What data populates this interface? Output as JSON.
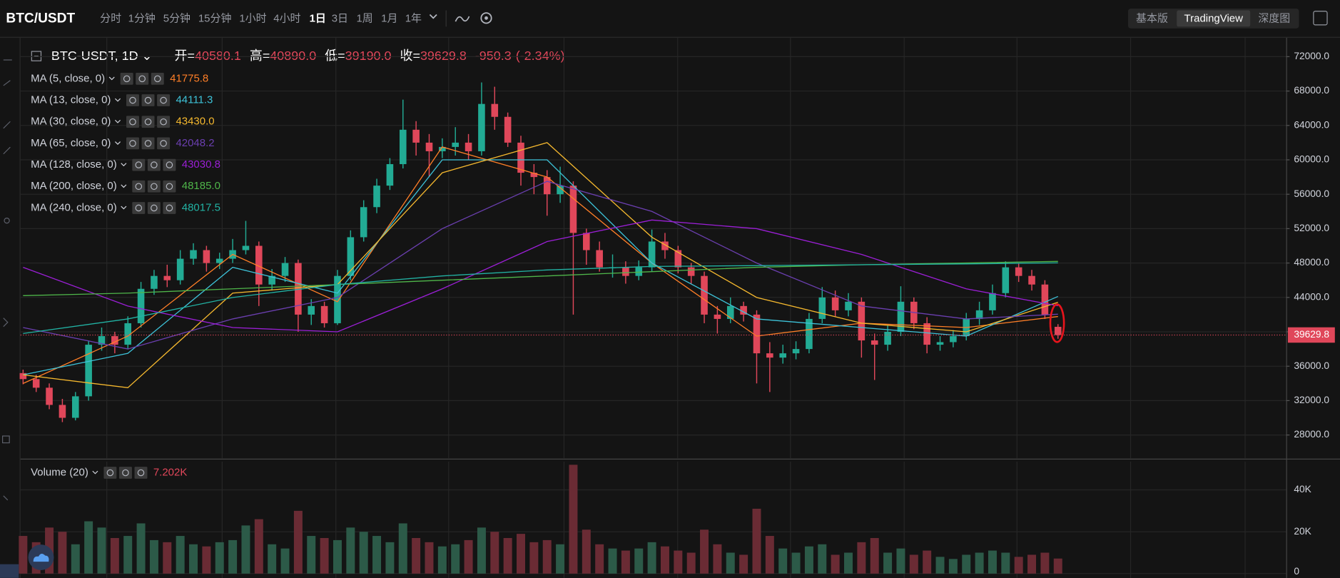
{
  "header": {
    "symbol": "BTC/USDT",
    "intervals": [
      "分时",
      "1分钟",
      "5分钟",
      "15分钟",
      "1小时",
      "4小时",
      "1日",
      "3日",
      "1周",
      "1月",
      "1年"
    ],
    "views": [
      "基本版",
      "TradingView",
      "深度图"
    ]
  },
  "chart_data": {
    "type": "candlestick",
    "title": "BTC-USDT, 1D",
    "legend": {
      "open_label": "开=",
      "open": "40580.1",
      "high_label": "高=",
      "high": "40890.0",
      "low_label": "低=",
      "low": "39190.0",
      "close_label": "收=",
      "close": "39629.8",
      "change": "-950.3",
      "change_pct": "(-2.34%)"
    },
    "up_color": "#22ab94",
    "down_color": "#e0475a",
    "grid": true,
    "ylim": [
      25300,
      74200
    ],
    "yticks": [
      {
        "value": 28000,
        "label": "28000.0"
      },
      {
        "value": 32000,
        "label": "32000.0"
      },
      {
        "value": 36000,
        "label": "36000.0"
      },
      {
        "value": 40000,
        "label": "40000.0"
      },
      {
        "value": 44000,
        "label": "44000.0"
      },
      {
        "value": 48000,
        "label": "48000.0"
      },
      {
        "value": 52000,
        "label": "52000.0"
      },
      {
        "value": 56000,
        "label": "56000.0"
      },
      {
        "value": 60000,
        "label": "60000.0"
      },
      {
        "value": 64000,
        "label": "64000.0"
      },
      {
        "value": 68000,
        "label": "68000.0"
      },
      {
        "value": 72000,
        "label": "72000.0"
      }
    ],
    "candles": [
      [
        35200,
        35600,
        33900,
        34500
      ],
      [
        34500,
        35000,
        33000,
        33500
      ],
      [
        33500,
        34000,
        31000,
        31500
      ],
      [
        31500,
        32200,
        29500,
        30000
      ],
      [
        30000,
        33000,
        29700,
        32500
      ],
      [
        32500,
        39000,
        32000,
        38500
      ],
      [
        38500,
        40500,
        37800,
        39500
      ],
      [
        39500,
        40000,
        37500,
        38500
      ],
      [
        38500,
        41800,
        38000,
        41000
      ],
      [
        41000,
        45800,
        40500,
        45000
      ],
      [
        45000,
        47200,
        44300,
        46500
      ],
      [
        46500,
        47800,
        45200,
        46000
      ],
      [
        46000,
        49500,
        45500,
        48500
      ],
      [
        48500,
        50300,
        47800,
        49500
      ],
      [
        49500,
        50000,
        47000,
        48000
      ],
      [
        48000,
        49200,
        47300,
        48500
      ],
      [
        48500,
        50800,
        48000,
        49500
      ],
      [
        49500,
        52900,
        49000,
        50000
      ],
      [
        50000,
        50500,
        43000,
        45500
      ],
      [
        45500,
        47300,
        44800,
        46500
      ],
      [
        46500,
        48700,
        45800,
        48000
      ],
      [
        48000,
        48400,
        40000,
        42000
      ],
      [
        42000,
        43800,
        40800,
        43000
      ],
      [
        43000,
        43500,
        40500,
        41000
      ],
      [
        41000,
        47200,
        40800,
        46500
      ],
      [
        46500,
        51800,
        46000,
        51000
      ],
      [
        51000,
        55300,
        50500,
        54500
      ],
      [
        54500,
        57800,
        53800,
        57000
      ],
      [
        57000,
        60200,
        56500,
        59500
      ],
      [
        59500,
        67000,
        59000,
        63500
      ],
      [
        63500,
        64500,
        60500,
        62000
      ],
      [
        62000,
        63000,
        58000,
        61000
      ],
      [
        61000,
        62500,
        60200,
        61500
      ],
      [
        61500,
        63800,
        60500,
        62000
      ],
      [
        62000,
        63000,
        60000,
        61000
      ],
      [
        61000,
        69000,
        60500,
        66500
      ],
      [
        66500,
        68500,
        63500,
        65000
      ],
      [
        65000,
        65500,
        61500,
        62000
      ],
      [
        62000,
        62800,
        57000,
        58500
      ],
      [
        58500,
        59500,
        56000,
        58000
      ],
      [
        58000,
        58800,
        53500,
        56000
      ],
      [
        56000,
        59200,
        55000,
        57000
      ],
      [
        57000,
        57500,
        42000,
        51500
      ],
      [
        51500,
        52000,
        47800,
        49500
      ],
      [
        49500,
        50500,
        47000,
        47500
      ],
      [
        47500,
        49000,
        46300,
        47500
      ],
      [
        47500,
        48200,
        45600,
        46500
      ],
      [
        46500,
        48300,
        46000,
        47500
      ],
      [
        47500,
        51900,
        47000,
        50500
      ],
      [
        50500,
        51500,
        48500,
        49500
      ],
      [
        49500,
        50000,
        46800,
        47500
      ],
      [
        47500,
        48000,
        45600,
        46500
      ],
      [
        46500,
        47000,
        41000,
        42000
      ],
      [
        42000,
        43000,
        39800,
        41500
      ],
      [
        41500,
        44000,
        41000,
        43000
      ],
      [
        43000,
        43500,
        41200,
        42000
      ],
      [
        42000,
        42500,
        34000,
        37500
      ],
      [
        37500,
        38800,
        33000,
        37000
      ],
      [
        37000,
        38500,
        36300,
        37500
      ],
      [
        37500,
        38900,
        36800,
        38000
      ],
      [
        38000,
        42200,
        37500,
        41500
      ],
      [
        41500,
        45200,
        41000,
        44000
      ],
      [
        44000,
        44800,
        41800,
        42500
      ],
      [
        42500,
        44500,
        41800,
        43500
      ],
      [
        43500,
        44000,
        37000,
        39000
      ],
      [
        39000,
        39800,
        34400,
        38500
      ],
      [
        38500,
        40800,
        37800,
        40000
      ],
      [
        40000,
        45300,
        39500,
        43500
      ],
      [
        43500,
        44000,
        40300,
        41000
      ],
      [
        41000,
        41700,
        37500,
        38500
      ],
      [
        38500,
        39500,
        37800,
        38800
      ],
      [
        38800,
        40200,
        38200,
        39500
      ],
      [
        39500,
        42200,
        39000,
        41500
      ],
      [
        41500,
        43500,
        40800,
        42500
      ],
      [
        42500,
        45500,
        42000,
        44500
      ],
      [
        44500,
        48200,
        44000,
        47500
      ],
      [
        47500,
        48000,
        45800,
        46500
      ],
      [
        46500,
        47200,
        44800,
        45500
      ],
      [
        45500,
        46000,
        41500,
        42000
      ],
      [
        40580.1,
        40890.0,
        39190.0,
        39629.8
      ]
    ],
    "series": [
      {
        "name": "MA (5, close, 0)",
        "color": "#ff7f27",
        "value_label": "41775.8",
        "x": [
          0,
          8,
          16,
          24,
          32,
          40,
          48,
          56,
          64,
          72,
          79
        ],
        "values": [
          34000,
          39500,
          49000,
          43500,
          61500,
          58000,
          48000,
          39500,
          41000,
          40500,
          41775.8
        ]
      },
      {
        "name": "MA (13, close, 0)",
        "color": "#3dc2d8",
        "value_label": "44111.3",
        "x": [
          0,
          8,
          16,
          24,
          32,
          40,
          48,
          56,
          64,
          72,
          79
        ],
        "values": [
          35000,
          37500,
          47500,
          44500,
          60000,
          60000,
          48000,
          41500,
          40500,
          39500,
          44111.3
        ]
      },
      {
        "name": "MA (30, close, 0)",
        "color": "#f5b82e",
        "value_label": "43430.0",
        "x": [
          0,
          8,
          16,
          24,
          32,
          40,
          48,
          56,
          64,
          72,
          79
        ],
        "values": [
          35000,
          33500,
          44500,
          45500,
          58500,
          62000,
          51000,
          44000,
          41000,
          40000,
          43430.0
        ]
      },
      {
        "name": "MA (65, close, 0)",
        "color": "#6b3fb0",
        "value_label": "42048.2",
        "x": [
          0,
          8,
          16,
          24,
          32,
          40,
          48,
          56,
          64,
          72,
          79
        ],
        "values": [
          40500,
          38000,
          41500,
          44000,
          52000,
          57500,
          54000,
          48000,
          43000,
          41500,
          42048.2
        ]
      },
      {
        "name": "MA (128, close, 0)",
        "color": "#9b1fd6",
        "value_label": "43030.8",
        "x": [
          0,
          8,
          16,
          24,
          32,
          40,
          48,
          56,
          64,
          72,
          79
        ],
        "values": [
          47500,
          43000,
          40500,
          40000,
          45000,
          50500,
          53000,
          52000,
          49000,
          45000,
          43030.8
        ]
      },
      {
        "name": "MA (200, close, 0)",
        "color": "#4fb64a",
        "value_label": "48185.0",
        "x": [
          0,
          8,
          16,
          24,
          32,
          40,
          48,
          56,
          64,
          72,
          79
        ],
        "values": [
          44200,
          44500,
          45000,
          45500,
          46000,
          46500,
          47000,
          47500,
          47800,
          48000,
          48185.0
        ]
      },
      {
        "name": "MA (240, close, 0)",
        "color": "#22b3a4",
        "value_label": "48017.5",
        "x": [
          0,
          8,
          16,
          24,
          32,
          40,
          48,
          56,
          64,
          72,
          79
        ],
        "values": [
          39800,
          41500,
          44000,
          45500,
          46500,
          47200,
          47600,
          47700,
          47800,
          47900,
          48017.5
        ]
      }
    ],
    "volume": {
      "name": "Volume (20)",
      "value_label": "7.202K",
      "ylim": [
        0,
        53500
      ],
      "yticks": [
        0,
        {
          "value": 20000,
          "label": "20K"
        },
        {
          "value": 40000,
          "label": "40K"
        }
      ],
      "values": [
        18000,
        15000,
        22000,
        20000,
        14000,
        25000,
        22000,
        17000,
        18000,
        24000,
        16000,
        15000,
        18000,
        14000,
        13000,
        15000,
        16000,
        23000,
        26000,
        14000,
        12000,
        30000,
        18000,
        17000,
        16000,
        22000,
        20000,
        18000,
        15000,
        24000,
        17000,
        15000,
        13000,
        14000,
        16000,
        22000,
        20000,
        17000,
        19000,
        15000,
        16000,
        14000,
        52000,
        21000,
        14000,
        12000,
        11000,
        12000,
        15000,
        13000,
        11000,
        10000,
        21000,
        14000,
        10000,
        9000,
        31000,
        18000,
        12000,
        10000,
        13000,
        14000,
        9000,
        10000,
        15000,
        17000,
        10000,
        12000,
        9000,
        11000,
        8000,
        7000,
        9000,
        10000,
        11000,
        10000,
        8000,
        9000,
        10000,
        7202
      ]
    }
  }
}
